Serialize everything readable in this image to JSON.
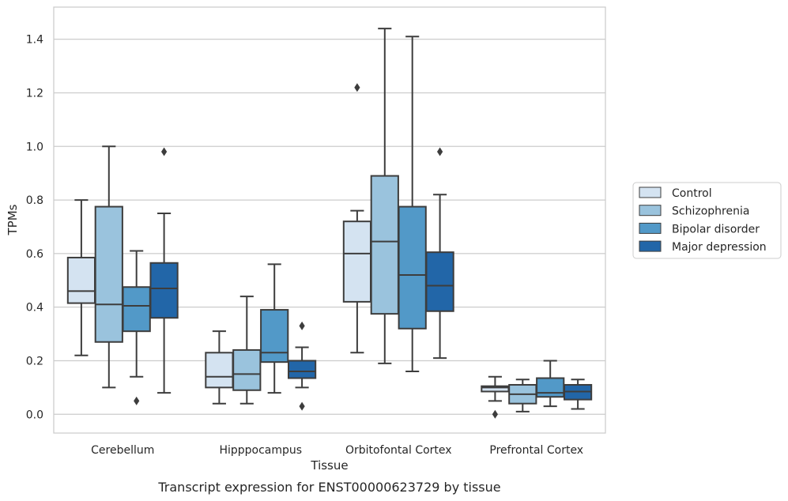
{
  "chart_data": {
    "type": "boxplot",
    "title": "",
    "caption": "Transcript expression for ENST00000623729 by tissue",
    "xlabel": "Tissue",
    "ylabel": "TPMs",
    "ylim": [
      -0.07,
      1.52
    ],
    "yticks": [
      0.0,
      0.2,
      0.4,
      0.6,
      0.8,
      1.0,
      1.2,
      1.4
    ],
    "ytick_labels": [
      "0.0",
      "0.2",
      "0.4",
      "0.6",
      "0.8",
      "1.0",
      "1.2",
      "1.4"
    ],
    "grid": "horizontal",
    "legend_position": "right",
    "categories": [
      "Cerebellum",
      "Hipppocampus",
      "Orbitofontal Cortex",
      "Prefrontal Cortex"
    ],
    "series": [
      {
        "name": "Control",
        "color": "#d4e3f1",
        "boxes": [
          {
            "whisker_low": 0.22,
            "q1": 0.415,
            "median": 0.46,
            "q3": 0.585,
            "whisker_high": 0.8,
            "outliers": []
          },
          {
            "whisker_low": 0.04,
            "q1": 0.1,
            "median": 0.14,
            "q3": 0.23,
            "whisker_high": 0.31,
            "outliers": []
          },
          {
            "whisker_low": 0.23,
            "q1": 0.42,
            "median": 0.6,
            "q3": 0.72,
            "whisker_high": 0.76,
            "outliers": [
              1.22
            ]
          },
          {
            "whisker_low": 0.05,
            "q1": 0.085,
            "median": 0.1,
            "q3": 0.105,
            "whisker_high": 0.14,
            "outliers": [
              0.0
            ]
          }
        ]
      },
      {
        "name": "Schizophrenia",
        "color": "#9ac3dd",
        "boxes": [
          {
            "whisker_low": 0.1,
            "q1": 0.27,
            "median": 0.41,
            "q3": 0.775,
            "whisker_high": 1.0,
            "outliers": []
          },
          {
            "whisker_low": 0.04,
            "q1": 0.09,
            "median": 0.15,
            "q3": 0.24,
            "whisker_high": 0.44,
            "outliers": []
          },
          {
            "whisker_low": 0.19,
            "q1": 0.375,
            "median": 0.645,
            "q3": 0.89,
            "whisker_high": 1.44,
            "outliers": []
          },
          {
            "whisker_low": 0.01,
            "q1": 0.04,
            "median": 0.075,
            "q3": 0.11,
            "whisker_high": 0.13,
            "outliers": []
          }
        ]
      },
      {
        "name": "Bipolar disorder",
        "color": "#5299c8",
        "boxes": [
          {
            "whisker_low": 0.14,
            "q1": 0.31,
            "median": 0.405,
            "q3": 0.475,
            "whisker_high": 0.61,
            "outliers": [
              0.05
            ]
          },
          {
            "whisker_low": 0.08,
            "q1": 0.195,
            "median": 0.23,
            "q3": 0.39,
            "whisker_high": 0.56,
            "outliers": []
          },
          {
            "whisker_low": 0.16,
            "q1": 0.32,
            "median": 0.52,
            "q3": 0.775,
            "whisker_high": 1.41,
            "outliers": []
          },
          {
            "whisker_low": 0.03,
            "q1": 0.065,
            "median": 0.08,
            "q3": 0.135,
            "whisker_high": 0.2,
            "outliers": []
          }
        ]
      },
      {
        "name": "Major depression",
        "color": "#2266a8",
        "boxes": [
          {
            "whisker_low": 0.08,
            "q1": 0.36,
            "median": 0.47,
            "q3": 0.565,
            "whisker_high": 0.75,
            "outliers": [
              0.98
            ]
          },
          {
            "whisker_low": 0.1,
            "q1": 0.135,
            "median": 0.16,
            "q3": 0.2,
            "whisker_high": 0.25,
            "outliers": [
              0.33,
              0.03
            ]
          },
          {
            "whisker_low": 0.21,
            "q1": 0.385,
            "median": 0.48,
            "q3": 0.605,
            "whisker_high": 0.82,
            "outliers": [
              0.98
            ]
          },
          {
            "whisker_low": 0.02,
            "q1": 0.055,
            "median": 0.085,
            "q3": 0.11,
            "whisker_high": 0.13,
            "outliers": []
          }
        ]
      }
    ]
  }
}
